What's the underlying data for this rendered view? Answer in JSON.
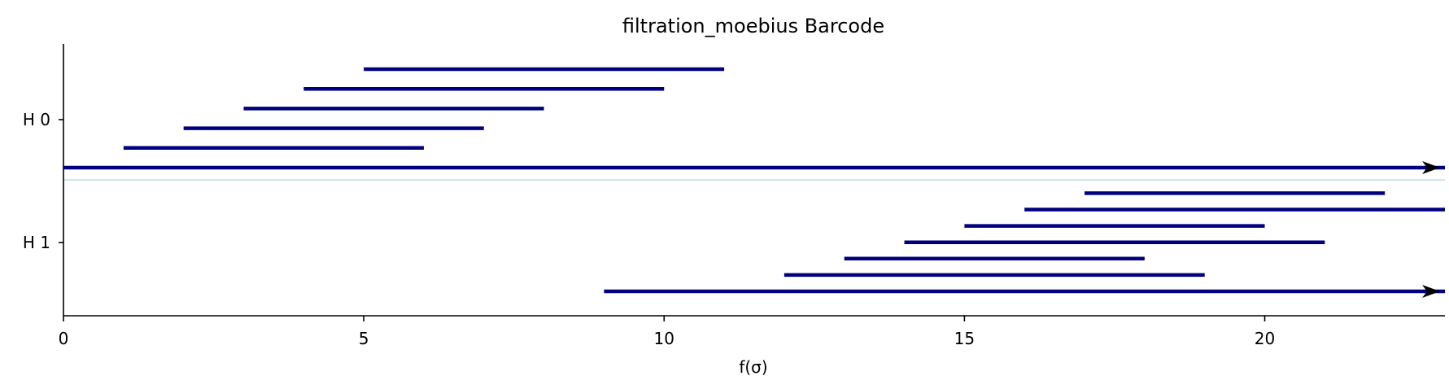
{
  "chart_data": {
    "type": "barcode",
    "title": "filtration_moebius Barcode",
    "xlabel": "f(σ)",
    "xlim": [
      0,
      23
    ],
    "xticks": [
      0,
      5,
      10,
      15,
      20
    ],
    "grid": false,
    "colors": {
      "bar": "#00007f",
      "arrow": "#000000",
      "separator": "#add8e6",
      "axis": "#000000"
    },
    "groups": [
      {
        "name": "H 0",
        "intervals": [
          {
            "birth": 0,
            "death": null
          },
          {
            "birth": 1,
            "death": 6
          },
          {
            "birth": 2,
            "death": 7
          },
          {
            "birth": 3,
            "death": 8
          },
          {
            "birth": 4,
            "death": 10
          },
          {
            "birth": 5,
            "death": 11
          }
        ]
      },
      {
        "name": "H 1",
        "intervals": [
          {
            "birth": 9,
            "death": null
          },
          {
            "birth": 12,
            "death": 19
          },
          {
            "birth": 13,
            "death": 18
          },
          {
            "birth": 14,
            "death": 21
          },
          {
            "birth": 15,
            "death": 20
          },
          {
            "birth": 16,
            "death": 23
          },
          {
            "birth": 17,
            "death": 22
          }
        ]
      }
    ]
  }
}
